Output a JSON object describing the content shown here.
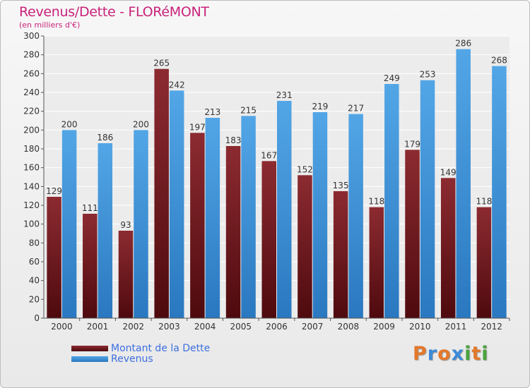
{
  "title": "Revenus/Dette - FLORéMONT",
  "subtitle": "(en milliers d'€)",
  "colors": {
    "dette": "#7a1f24",
    "revenus": "#3f97dc",
    "title": "#c8237a"
  },
  "chart_data": {
    "type": "bar",
    "title": "Revenus/Dette - FLORéMONT",
    "ylabel": "(en milliers d'€)",
    "xlabel": "",
    "ylim": [
      0,
      300
    ],
    "ytick_step": 20,
    "grid": true,
    "legend_position": "bottom-left",
    "categories": [
      "2000",
      "2001",
      "2002",
      "2003",
      "2004",
      "2005",
      "2006",
      "2007",
      "2008",
      "2009",
      "2010",
      "2011",
      "2012"
    ],
    "series": [
      {
        "name": "Montant de la Dette",
        "values": [
          129,
          111,
          93,
          265,
          197,
          183,
          167,
          152,
          135,
          118,
          179,
          149,
          118
        ]
      },
      {
        "name": "Revenus",
        "values": [
          200,
          186,
          200,
          242,
          213,
          215,
          231,
          219,
          217,
          249,
          253,
          286,
          268
        ]
      }
    ]
  },
  "legend": [
    {
      "label": "Montant de la Dette"
    },
    {
      "label": "Revenus"
    }
  ],
  "logo": {
    "letters": [
      "P",
      "r",
      "o",
      "x",
      "i",
      "t",
      "i"
    ],
    "colors": [
      "#e2792b",
      "#3d8ad8",
      "#e2792b",
      "#3d8ad8",
      "#4aa33e",
      "#e2792b",
      "#4aa33e"
    ]
  }
}
